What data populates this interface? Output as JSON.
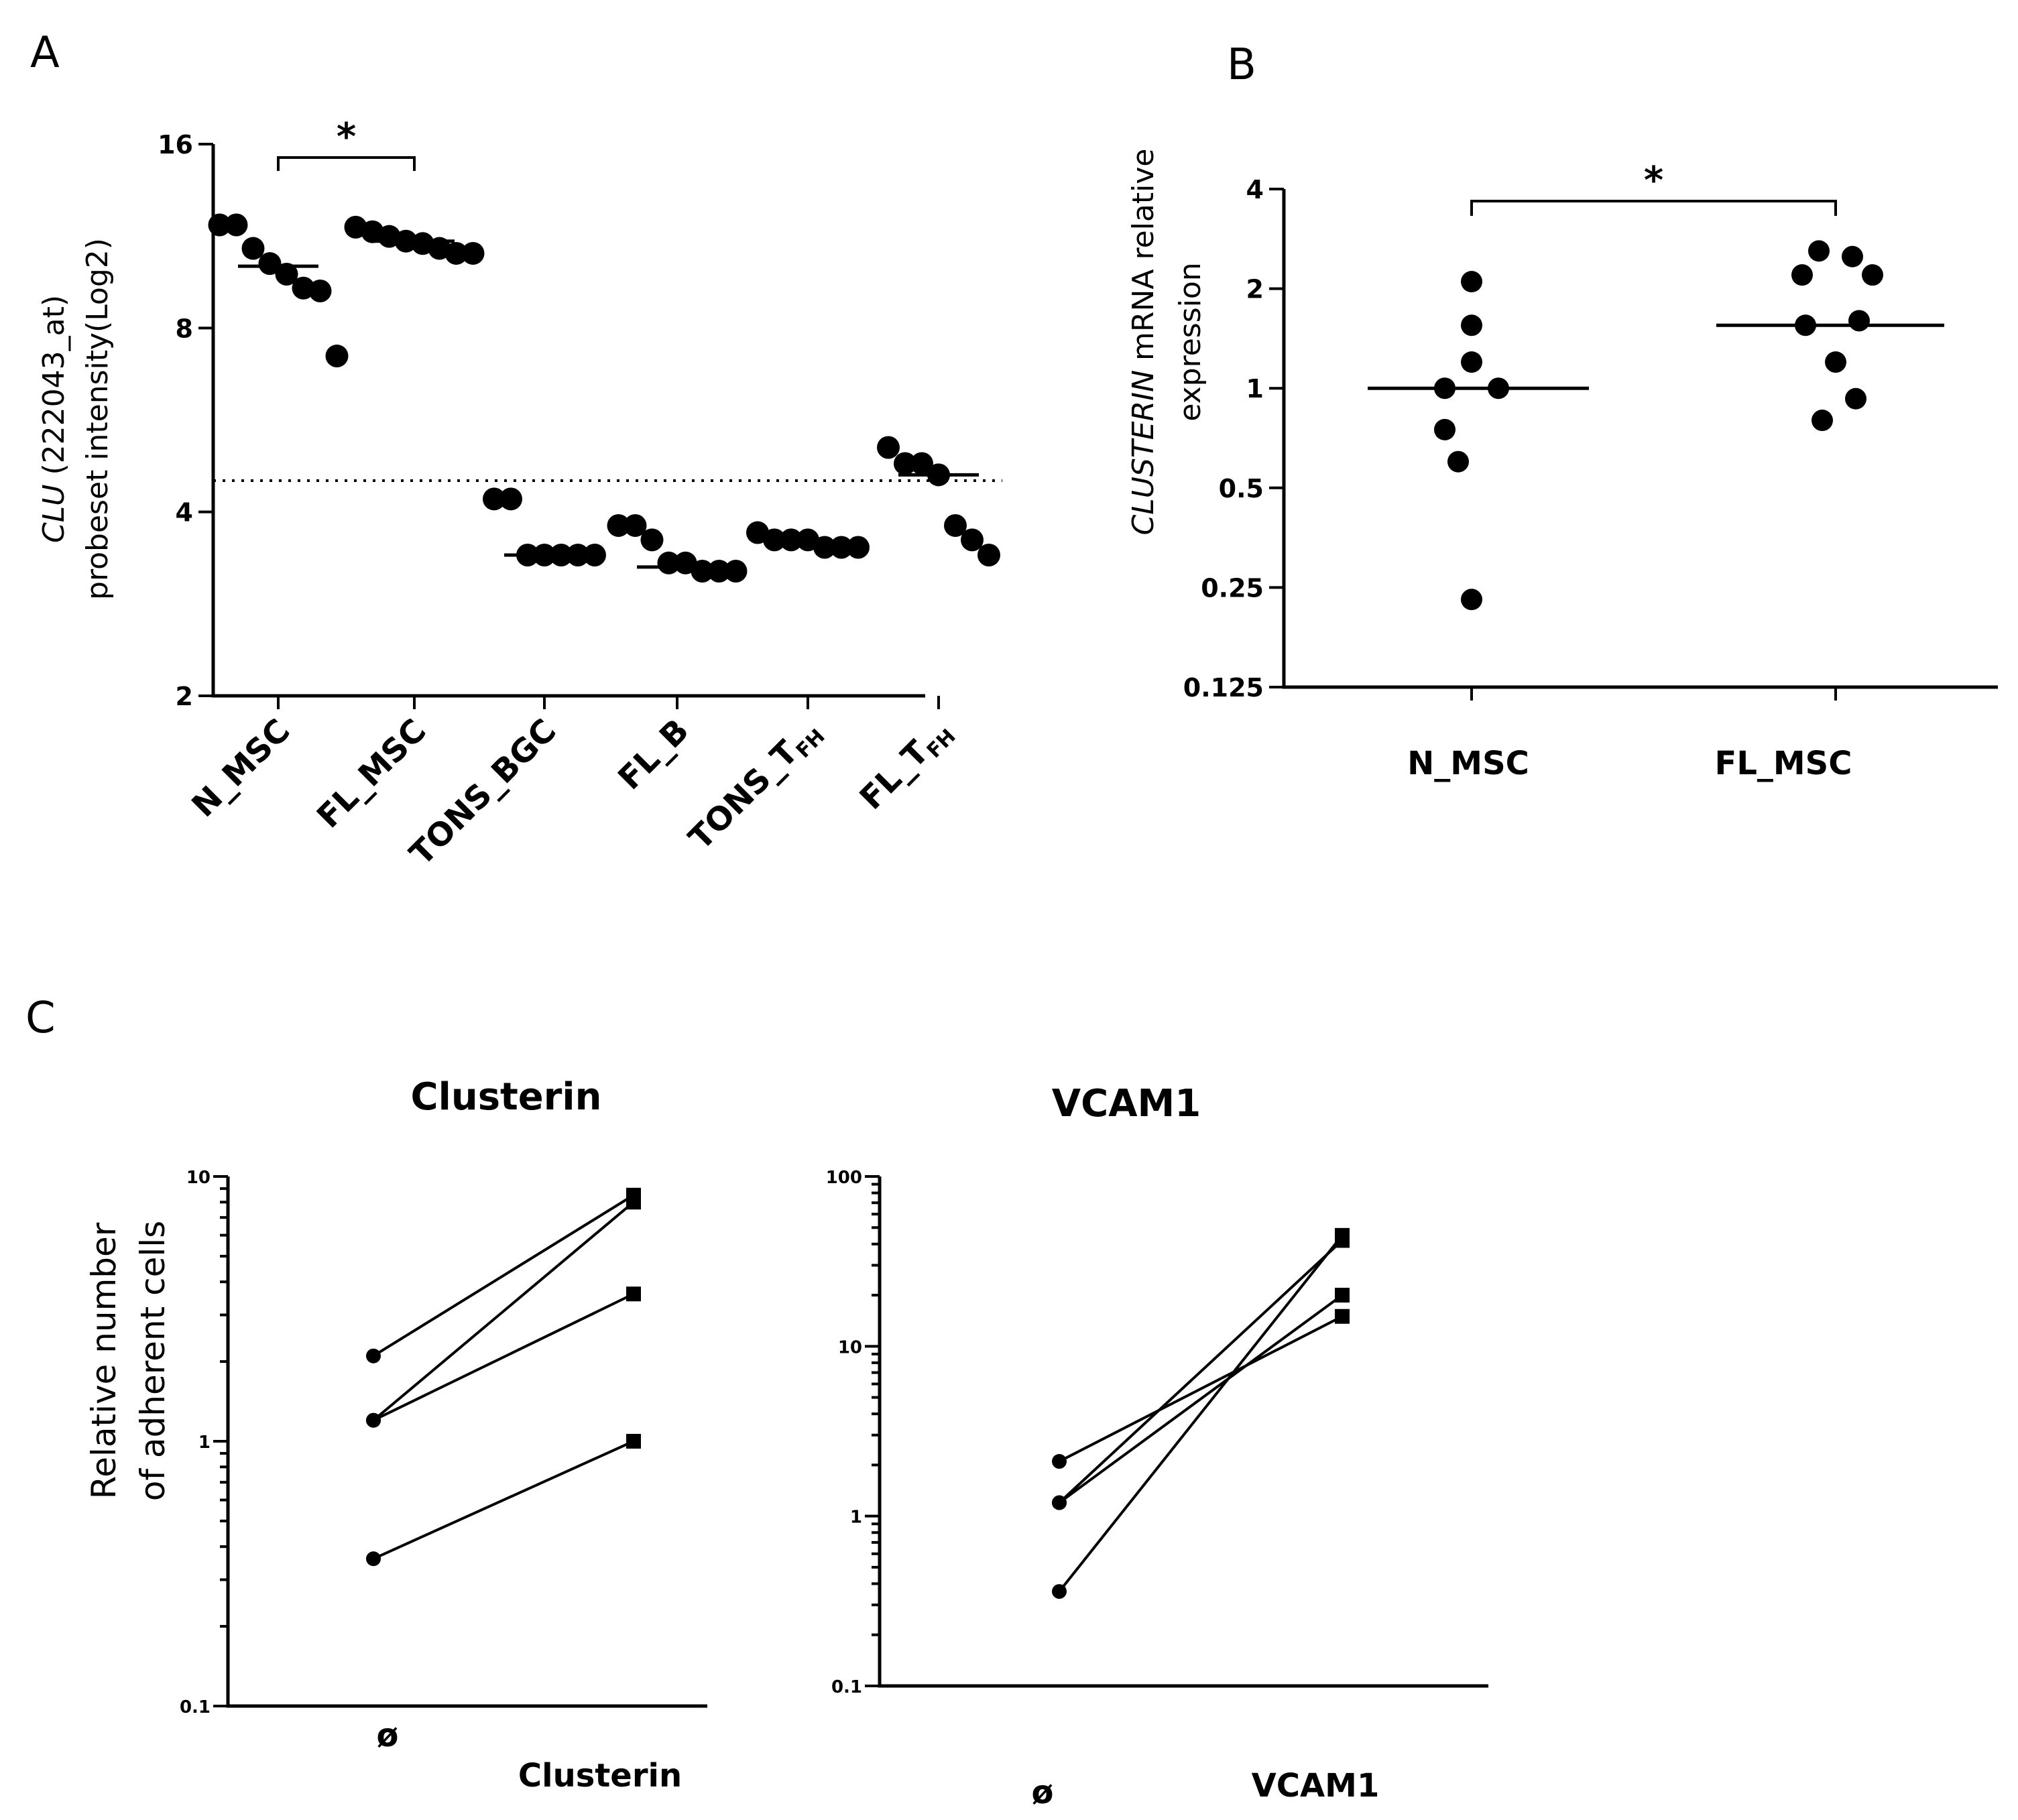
{
  "chart_data": [
    {
      "panel": "A",
      "type": "scatter",
      "ylabel_italic": "CLU",
      "ylabel_rest": " (222043_at)",
      "ylabel_line2": "probeset intensity(Log2)",
      "yscale": "log2",
      "ylim": [
        2,
        16
      ],
      "yticks": [
        2,
        4,
        8,
        16
      ],
      "threshold": 4.5,
      "categories": [
        {
          "label": "N_MSC"
        },
        {
          "label": "FL_MSC"
        },
        {
          "label": "TONS_BGC"
        },
        {
          "label": "FL_B"
        },
        {
          "label": "TONS_T",
          "sub": "FH"
        },
        {
          "label": "FL_T",
          "sub": "FH"
        }
      ],
      "points": [
        [
          11.8,
          11.8,
          10.8,
          10.2,
          9.8,
          9.3,
          9.2,
          7.2
        ],
        [
          11.7,
          11.5,
          11.3,
          11.1,
          11.0,
          10.8,
          10.6,
          10.6
        ],
        [
          4.2,
          4.2,
          3.4,
          3.4,
          3.4,
          3.4,
          3.4
        ],
        [
          3.8,
          3.8,
          3.6,
          3.3,
          3.3,
          3.2,
          3.2,
          3.2
        ],
        [
          3.7,
          3.6,
          3.6,
          3.6,
          3.5,
          3.5,
          3.5
        ],
        [
          5.1,
          4.8,
          4.8,
          4.6,
          3.8,
          3.6,
          3.4
        ]
      ],
      "medians": [
        10.1,
        11.1,
        3.4,
        3.25,
        3.55,
        4.6
      ],
      "significance": {
        "from": 0,
        "to": 1,
        "label": "*"
      }
    },
    {
      "panel": "B",
      "type": "scatter",
      "ylabel_italic": "CLUSTERIN",
      "ylabel_rest": " mRNA relative",
      "ylabel_line2": "expression",
      "yscale": "log2",
      "ylim": [
        0.125,
        4
      ],
      "yticks": [
        0.125,
        0.25,
        0.5,
        1,
        2,
        4
      ],
      "categories": [
        "N_MSC",
        "FL_MSC"
      ],
      "points": [
        [
          2.1,
          1.55,
          1.2,
          1.0,
          1.0,
          0.75,
          0.6,
          0.23
        ],
        [
          2.6,
          2.5,
          2.2,
          2.2,
          1.6,
          1.55,
          1.2,
          0.93,
          0.8
        ]
      ],
      "medians": [
        1.0,
        1.55
      ],
      "significance": {
        "from": 0,
        "to": 1,
        "label": "*"
      }
    },
    {
      "panel": "C",
      "type": "line",
      "title": "Clusterin",
      "ylabel_line1": "Relative number",
      "ylabel_line2": "of adherent cells",
      "yscale": "log10",
      "ylim": [
        0.1,
        10
      ],
      "yticks": [
        0.1,
        1,
        10
      ],
      "x": [
        "ø",
        "Clusterin"
      ],
      "series": [
        {
          "values": [
            2.1,
            8.5
          ]
        },
        {
          "values": [
            1.2,
            8.0
          ]
        },
        {
          "values": [
            1.2,
            3.6
          ]
        },
        {
          "values": [
            0.36,
            1.0
          ]
        }
      ]
    },
    {
      "panel": "C",
      "type": "line",
      "title": "VCAM1",
      "yscale": "log10",
      "ylim": [
        0.1,
        100
      ],
      "yticks": [
        0.1,
        1,
        10,
        100
      ],
      "x": [
        "ø",
        "VCAM1"
      ],
      "series": [
        {
          "values": [
            2.1,
            15
          ]
        },
        {
          "values": [
            1.2,
            20
          ]
        },
        {
          "values": [
            1.2,
            42
          ]
        },
        {
          "values": [
            0.36,
            45
          ]
        }
      ]
    }
  ],
  "panel_letters": {
    "a": "A",
    "b": "B",
    "c": "C"
  }
}
